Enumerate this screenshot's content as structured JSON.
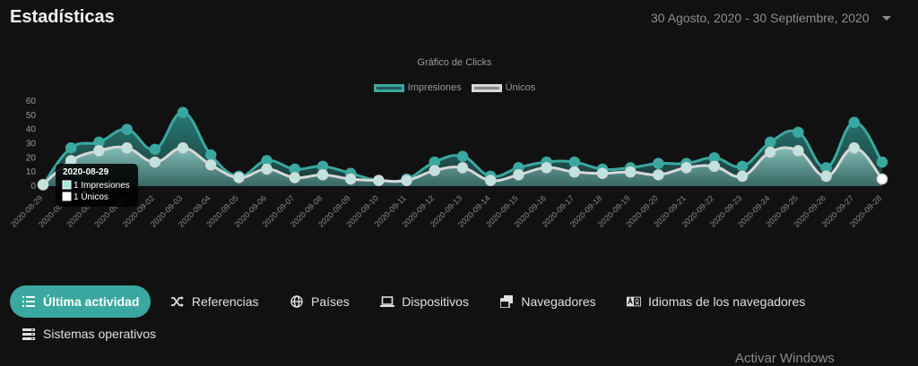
{
  "header": {
    "title": "Estadísticas",
    "date_range": "30 Agosto, 2020 - 30 Septiembre, 2020"
  },
  "chart_data": {
    "type": "area",
    "title": "Gráfico de Clicks",
    "x": [
      "2020-08-29",
      "2020-08-30",
      "2020-08-31",
      "2020-09-01",
      "2020-09-02",
      "2020-09-03",
      "2020-09-04",
      "2020-09-05",
      "2020-09-06",
      "2020-09-07",
      "2020-09-08",
      "2020-09-09",
      "2020-09-10",
      "2020-09-11",
      "2020-09-12",
      "2020-09-13",
      "2020-09-14",
      "2020-09-15",
      "2020-09-16",
      "2020-09-17",
      "2020-09-18",
      "2020-09-19",
      "2020-09-20",
      "2020-09-21",
      "2020-09-22",
      "2020-09-23",
      "2020-09-24",
      "2020-09-25",
      "2020-09-26",
      "2020-09-27",
      "2020-09-28"
    ],
    "series": [
      {
        "name": "Impresiones",
        "color": "#3aa8a0",
        "values": [
          1,
          27,
          31,
          40,
          26,
          52,
          22,
          7,
          18,
          12,
          14,
          9,
          4,
          5,
          17,
          21,
          7,
          13,
          17,
          17,
          12,
          13,
          16,
          16,
          20,
          14,
          31,
          38,
          13,
          45,
          17
        ]
      },
      {
        "name": "Únicos",
        "color": "#d8d8d8",
        "values": [
          1,
          18,
          25,
          27,
          17,
          27,
          15,
          6,
          12,
          6,
          8,
          5,
          4,
          4,
          11,
          13,
          4,
          8,
          13,
          10,
          9,
          10,
          8,
          13,
          14,
          7,
          24,
          25,
          7,
          27,
          5
        ]
      }
    ],
    "ylim": [
      0,
      60
    ],
    "yticks": [
      0,
      10,
      20,
      30,
      40,
      50,
      60
    ],
    "legend": "top-center",
    "grid": false,
    "tooltip": {
      "title": "2020-08-29",
      "lines": [
        "1 Impresiones",
        "1 Únicos"
      ]
    }
  },
  "tabs": [
    {
      "label": "Última actividad",
      "icon": "list-icon",
      "active": true
    },
    {
      "label": "Referencias",
      "icon": "shuffle-icon",
      "active": false
    },
    {
      "label": "Países",
      "icon": "globe-icon",
      "active": false
    },
    {
      "label": "Dispositivos",
      "icon": "laptop-icon",
      "active": false
    },
    {
      "label": "Navegadores",
      "icon": "browser-windows-icon",
      "active": false
    },
    {
      "label": "Idiomas de los navegadores",
      "icon": "language-icon",
      "active": false
    },
    {
      "label": "Sistemas operativos",
      "icon": "server-icon",
      "active": false
    }
  ],
  "watermark": "Activar Windows"
}
